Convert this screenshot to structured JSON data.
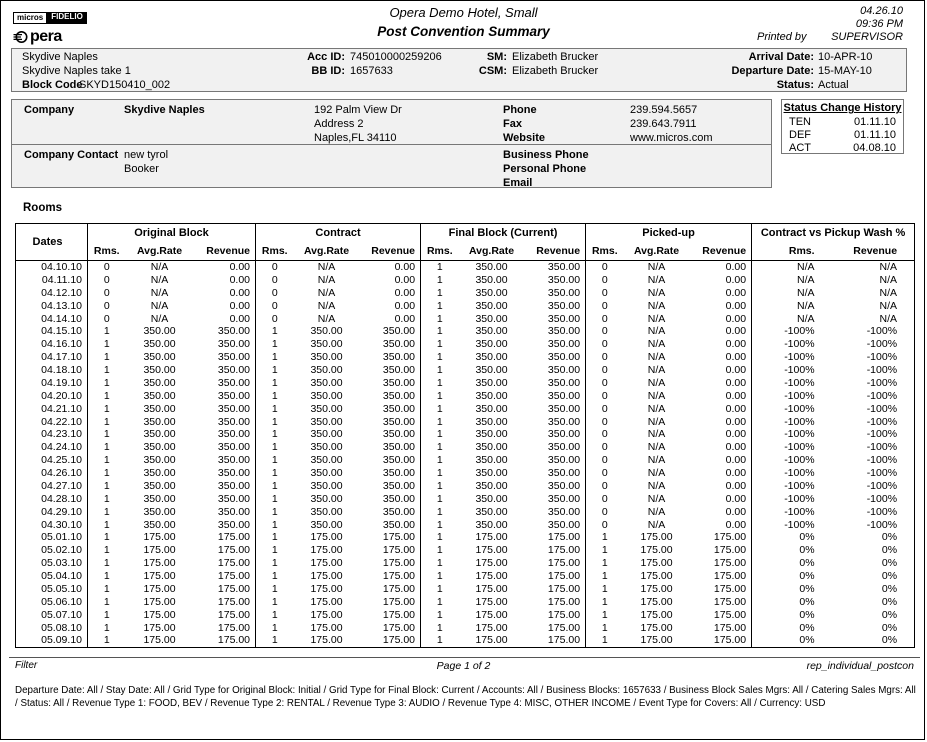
{
  "header": {
    "logo_micros": "micros",
    "logo_fidelio": "FIDELIO",
    "logo_opera": "pera",
    "hotel_title": "Opera Demo Hotel, Small",
    "report_title": "Post Convention Summary",
    "date": "04.26.10",
    "time": "09:36 PM",
    "printed_by_label": "Printed by",
    "printed_by_user": "SUPERVISOR"
  },
  "account_band": {
    "account_name": "Skydive Naples",
    "block_name": "Skydive Naples take 1",
    "block_code_label": "Block Code",
    "block_code_value": "SKYD150410_002",
    "acc_id_label": "Acc ID:",
    "acc_id_value": "745010000259206",
    "bb_id_label": "BB ID:",
    "bb_id_value": "1657633",
    "sm_label": "SM:",
    "sm_value": "Elizabeth Brucker",
    "csm_label": "CSM:",
    "csm_value": "Elizabeth Brucker",
    "arrival_label": "Arrival Date:",
    "arrival_value": "10-APR-10",
    "departure_label": "Departure Date:",
    "departure_value": "15-MAY-10",
    "status_label": "Status:",
    "status_value": "Actual"
  },
  "company_box": {
    "company_label": "Company",
    "company_name": "Skydive Naples",
    "address_line1": "192 Palm View Dr",
    "address_line2": "Address 2",
    "address_line3": "Naples,FL 34110",
    "phone_label": "Phone",
    "phone_value": "239.594.5657",
    "fax_label": "Fax",
    "fax_value": "239.643.7911",
    "website_label": "Website",
    "website_value": "www.micros.com",
    "contact_label": "Company Contact",
    "contact_name": "new tyrol",
    "contact_role": "Booker",
    "business_phone_label": "Business Phone",
    "personal_phone_label": "Personal Phone",
    "email_label": "Email"
  },
  "status_history": {
    "title": "Status Change History",
    "rows": [
      {
        "code": "TEN",
        "date": "01.11.10"
      },
      {
        "code": "DEF",
        "date": "01.11.10"
      },
      {
        "code": "ACT",
        "date": "04.08.10"
      }
    ]
  },
  "rooms_table": {
    "section_title": "Rooms",
    "dates_header": "Dates",
    "groups": [
      {
        "label": "Original Block",
        "sub": [
          "Rms.",
          "Avg.Rate",
          "Revenue"
        ]
      },
      {
        "label": "Contract",
        "sub": [
          "Rms.",
          "Avg.Rate",
          "Revenue"
        ]
      },
      {
        "label": "Final Block (Current)",
        "sub": [
          "Rms.",
          "Avg.Rate",
          "Revenue"
        ]
      },
      {
        "label": "Picked-up",
        "sub": [
          "Rms.",
          "Avg.Rate",
          "Revenue"
        ]
      },
      {
        "label": "Contract vs Pickup Wash %",
        "sub": [
          "Rms.",
          "Revenue"
        ]
      }
    ],
    "rows": [
      {
        "date": "04.10.10",
        "values": [
          "0",
          "N/A",
          "0.00",
          "0",
          "N/A",
          "0.00",
          "1",
          "350.00",
          "350.00",
          "0",
          "N/A",
          "0.00",
          "N/A",
          "N/A"
        ]
      },
      {
        "date": "04.11.10",
        "values": [
          "0",
          "N/A",
          "0.00",
          "0",
          "N/A",
          "0.00",
          "1",
          "350.00",
          "350.00",
          "0",
          "N/A",
          "0.00",
          "N/A",
          "N/A"
        ]
      },
      {
        "date": "04.12.10",
        "values": [
          "0",
          "N/A",
          "0.00",
          "0",
          "N/A",
          "0.00",
          "1",
          "350.00",
          "350.00",
          "0",
          "N/A",
          "0.00",
          "N/A",
          "N/A"
        ]
      },
      {
        "date": "04.13.10",
        "values": [
          "0",
          "N/A",
          "0.00",
          "0",
          "N/A",
          "0.00",
          "1",
          "350.00",
          "350.00",
          "0",
          "N/A",
          "0.00",
          "N/A",
          "N/A"
        ]
      },
      {
        "date": "04.14.10",
        "values": [
          "0",
          "N/A",
          "0.00",
          "0",
          "N/A",
          "0.00",
          "1",
          "350.00",
          "350.00",
          "0",
          "N/A",
          "0.00",
          "N/A",
          "N/A"
        ]
      },
      {
        "date": "04.15.10",
        "values": [
          "1",
          "350.00",
          "350.00",
          "1",
          "350.00",
          "350.00",
          "1",
          "350.00",
          "350.00",
          "0",
          "N/A",
          "0.00",
          "-100%",
          "-100%"
        ]
      },
      {
        "date": "04.16.10",
        "values": [
          "1",
          "350.00",
          "350.00",
          "1",
          "350.00",
          "350.00",
          "1",
          "350.00",
          "350.00",
          "0",
          "N/A",
          "0.00",
          "-100%",
          "-100%"
        ]
      },
      {
        "date": "04.17.10",
        "values": [
          "1",
          "350.00",
          "350.00",
          "1",
          "350.00",
          "350.00",
          "1",
          "350.00",
          "350.00",
          "0",
          "N/A",
          "0.00",
          "-100%",
          "-100%"
        ]
      },
      {
        "date": "04.18.10",
        "values": [
          "1",
          "350.00",
          "350.00",
          "1",
          "350.00",
          "350.00",
          "1",
          "350.00",
          "350.00",
          "0",
          "N/A",
          "0.00",
          "-100%",
          "-100%"
        ]
      },
      {
        "date": "04.19.10",
        "values": [
          "1",
          "350.00",
          "350.00",
          "1",
          "350.00",
          "350.00",
          "1",
          "350.00",
          "350.00",
          "0",
          "N/A",
          "0.00",
          "-100%",
          "-100%"
        ]
      },
      {
        "date": "04.20.10",
        "values": [
          "1",
          "350.00",
          "350.00",
          "1",
          "350.00",
          "350.00",
          "1",
          "350.00",
          "350.00",
          "0",
          "N/A",
          "0.00",
          "-100%",
          "-100%"
        ]
      },
      {
        "date": "04.21.10",
        "values": [
          "1",
          "350.00",
          "350.00",
          "1",
          "350.00",
          "350.00",
          "1",
          "350.00",
          "350.00",
          "0",
          "N/A",
          "0.00",
          "-100%",
          "-100%"
        ]
      },
      {
        "date": "04.22.10",
        "values": [
          "1",
          "350.00",
          "350.00",
          "1",
          "350.00",
          "350.00",
          "1",
          "350.00",
          "350.00",
          "0",
          "N/A",
          "0.00",
          "-100%",
          "-100%"
        ]
      },
      {
        "date": "04.23.10",
        "values": [
          "1",
          "350.00",
          "350.00",
          "1",
          "350.00",
          "350.00",
          "1",
          "350.00",
          "350.00",
          "0",
          "N/A",
          "0.00",
          "-100%",
          "-100%"
        ]
      },
      {
        "date": "04.24.10",
        "values": [
          "1",
          "350.00",
          "350.00",
          "1",
          "350.00",
          "350.00",
          "1",
          "350.00",
          "350.00",
          "0",
          "N/A",
          "0.00",
          "-100%",
          "-100%"
        ]
      },
      {
        "date": "04.25.10",
        "values": [
          "1",
          "350.00",
          "350.00",
          "1",
          "350.00",
          "350.00",
          "1",
          "350.00",
          "350.00",
          "0",
          "N/A",
          "0.00",
          "-100%",
          "-100%"
        ]
      },
      {
        "date": "04.26.10",
        "values": [
          "1",
          "350.00",
          "350.00",
          "1",
          "350.00",
          "350.00",
          "1",
          "350.00",
          "350.00",
          "0",
          "N/A",
          "0.00",
          "-100%",
          "-100%"
        ]
      },
      {
        "date": "04.27.10",
        "values": [
          "1",
          "350.00",
          "350.00",
          "1",
          "350.00",
          "350.00",
          "1",
          "350.00",
          "350.00",
          "0",
          "N/A",
          "0.00",
          "-100%",
          "-100%"
        ]
      },
      {
        "date": "04.28.10",
        "values": [
          "1",
          "350.00",
          "350.00",
          "1",
          "350.00",
          "350.00",
          "1",
          "350.00",
          "350.00",
          "0",
          "N/A",
          "0.00",
          "-100%",
          "-100%"
        ]
      },
      {
        "date": "04.29.10",
        "values": [
          "1",
          "350.00",
          "350.00",
          "1",
          "350.00",
          "350.00",
          "1",
          "350.00",
          "350.00",
          "0",
          "N/A",
          "0.00",
          "-100%",
          "-100%"
        ]
      },
      {
        "date": "04.30.10",
        "values": [
          "1",
          "350.00",
          "350.00",
          "1",
          "350.00",
          "350.00",
          "1",
          "350.00",
          "350.00",
          "0",
          "N/A",
          "0.00",
          "-100%",
          "-100%"
        ]
      },
      {
        "date": "05.01.10",
        "values": [
          "1",
          "175.00",
          "175.00",
          "1",
          "175.00",
          "175.00",
          "1",
          "175.00",
          "175.00",
          "1",
          "175.00",
          "175.00",
          "0%",
          "0%"
        ]
      },
      {
        "date": "05.02.10",
        "values": [
          "1",
          "175.00",
          "175.00",
          "1",
          "175.00",
          "175.00",
          "1",
          "175.00",
          "175.00",
          "1",
          "175.00",
          "175.00",
          "0%",
          "0%"
        ]
      },
      {
        "date": "05.03.10",
        "values": [
          "1",
          "175.00",
          "175.00",
          "1",
          "175.00",
          "175.00",
          "1",
          "175.00",
          "175.00",
          "1",
          "175.00",
          "175.00",
          "0%",
          "0%"
        ]
      },
      {
        "date": "05.04.10",
        "values": [
          "1",
          "175.00",
          "175.00",
          "1",
          "175.00",
          "175.00",
          "1",
          "175.00",
          "175.00",
          "1",
          "175.00",
          "175.00",
          "0%",
          "0%"
        ]
      },
      {
        "date": "05.05.10",
        "values": [
          "1",
          "175.00",
          "175.00",
          "1",
          "175.00",
          "175.00",
          "1",
          "175.00",
          "175.00",
          "1",
          "175.00",
          "175.00",
          "0%",
          "0%"
        ]
      },
      {
        "date": "05.06.10",
        "values": [
          "1",
          "175.00",
          "175.00",
          "1",
          "175.00",
          "175.00",
          "1",
          "175.00",
          "175.00",
          "1",
          "175.00",
          "175.00",
          "0%",
          "0%"
        ]
      },
      {
        "date": "05.07.10",
        "values": [
          "1",
          "175.00",
          "175.00",
          "1",
          "175.00",
          "175.00",
          "1",
          "175.00",
          "175.00",
          "1",
          "175.00",
          "175.00",
          "0%",
          "0%"
        ]
      },
      {
        "date": "05.08.10",
        "values": [
          "1",
          "175.00",
          "175.00",
          "1",
          "175.00",
          "175.00",
          "1",
          "175.00",
          "175.00",
          "1",
          "175.00",
          "175.00",
          "0%",
          "0%"
        ]
      },
      {
        "date": "05.09.10",
        "values": [
          "1",
          "175.00",
          "175.00",
          "1",
          "175.00",
          "175.00",
          "1",
          "175.00",
          "175.00",
          "1",
          "175.00",
          "175.00",
          "0%",
          "0%"
        ]
      }
    ]
  },
  "footer": {
    "filter_label": "Filter",
    "page_label": "Page 1 of 2",
    "report_id": "rep_individual_postcon",
    "filter_text": "Departure Date: All / Stay Date:  All / Grid Type for Original Block: Initial / Grid Type for Final Block: Current / Accounts: All / Business Blocks: 1657633 / Business Block Sales Mgrs: All / Catering Sales Mgrs: All / Status: All / Revenue Type 1: FOOD, BEV / Revenue Type 2: RENTAL / Revenue Type 3: AUDIO / Revenue Type 4: MISC, OTHER INCOME / Event Type for Covers: All / Currency: USD"
  }
}
